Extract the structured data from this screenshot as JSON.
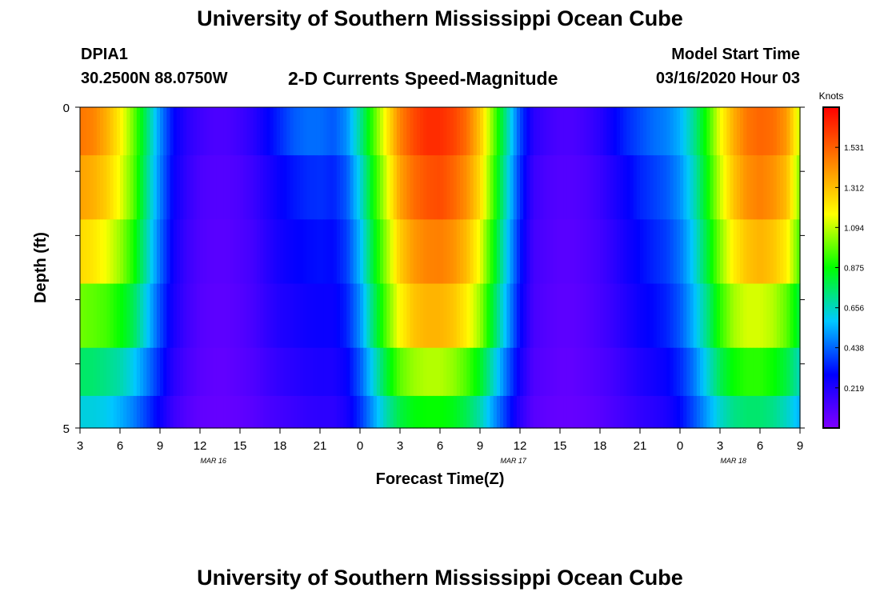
{
  "header": {
    "title": "University of Southern Mississippi Ocean Cube",
    "station": "DPIA1",
    "coords": "30.2500N 88.0750W",
    "subtitle": "2-D Currents Speed-Magnitude",
    "model_label": "Model Start Time",
    "model_time": "03/16/2020 Hour 03"
  },
  "footer": {
    "title": "University of Southern Mississippi Ocean Cube"
  },
  "colorbar": {
    "unit": "Knots",
    "tick_labels": [
      "0.219",
      "0.438",
      "0.656",
      "0.875",
      "1.094",
      "1.312",
      "1.531"
    ],
    "tick_values": [
      0.219,
      0.438,
      0.656,
      0.875,
      1.094,
      1.312,
      1.531
    ],
    "range": [
      0.0,
      1.75
    ],
    "colors": [
      "#7f00ff",
      "#0000ff",
      "#00c8ff",
      "#00ff00",
      "#ffff00",
      "#ff8000",
      "#ff0000"
    ]
  },
  "chart_data": {
    "type": "heatmap",
    "xlabel": "Forecast Time(Z)",
    "ylabel": "Depth (ft)",
    "ylim": [
      5,
      0
    ],
    "y_tick_labels": [
      "0",
      "5"
    ],
    "x_tick_labels": [
      "3",
      "6",
      "9",
      "12",
      "15",
      "18",
      "21",
      "0",
      "3",
      "6",
      "9",
      "12",
      "15",
      "18",
      "21",
      "0",
      "3",
      "6",
      "9"
    ],
    "x_tick_hours": [
      0,
      3,
      6,
      9,
      12,
      15,
      18,
      21,
      24,
      27,
      30,
      33,
      36,
      39,
      42,
      45,
      48,
      51,
      54
    ],
    "date_labels": [
      {
        "label": "MAR 16",
        "hour": 10
      },
      {
        "label": "MAR 17",
        "hour": 32.5
      },
      {
        "label": "MAR 18",
        "hour": 49
      }
    ],
    "x_hours": [
      0,
      1,
      2,
      3,
      4,
      5,
      6,
      7,
      8,
      9,
      10,
      11,
      12,
      13,
      14,
      15,
      16,
      17,
      18,
      19,
      20,
      21,
      22,
      23,
      24,
      25,
      26,
      27,
      28,
      29,
      30,
      31,
      32,
      33,
      34,
      35,
      36,
      37,
      38,
      39,
      40,
      41,
      42,
      43,
      44,
      45,
      46,
      47,
      48,
      49,
      50,
      51,
      52,
      53,
      54
    ],
    "depth_layers_ft": [
      0.25,
      1.25,
      2.25,
      3.25,
      4.25,
      4.75
    ],
    "values": [
      [
        1.48,
        1.45,
        1.35,
        1.2,
        1.0,
        0.75,
        0.5,
        0.3,
        0.2,
        0.15,
        0.12,
        0.12,
        0.15,
        0.2,
        0.28,
        0.35,
        0.42,
        0.45,
        0.45,
        0.42,
        0.5,
        0.7,
        0.95,
        1.2,
        1.45,
        1.58,
        1.65,
        1.65,
        1.6,
        1.5,
        1.3,
        1.0,
        0.7,
        0.4,
        0.2,
        0.15,
        0.12,
        0.12,
        0.15,
        0.2,
        0.28,
        0.35,
        0.4,
        0.45,
        0.48,
        0.55,
        0.7,
        0.9,
        1.15,
        1.35,
        1.48,
        1.52,
        1.5,
        1.4,
        1.1
      ],
      [
        1.38,
        1.35,
        1.28,
        1.15,
        0.98,
        0.72,
        0.48,
        0.28,
        0.18,
        0.12,
        0.1,
        0.1,
        0.12,
        0.16,
        0.22,
        0.28,
        0.32,
        0.35,
        0.36,
        0.34,
        0.42,
        0.62,
        0.88,
        1.12,
        1.38,
        1.5,
        1.56,
        1.58,
        1.52,
        1.42,
        1.25,
        0.95,
        0.65,
        0.36,
        0.16,
        0.12,
        0.1,
        0.1,
        0.12,
        0.16,
        0.22,
        0.28,
        0.34,
        0.38,
        0.42,
        0.5,
        0.65,
        0.86,
        1.1,
        1.3,
        1.42,
        1.46,
        1.42,
        1.32,
        1.02
      ],
      [
        1.25,
        1.22,
        1.15,
        1.05,
        0.9,
        0.68,
        0.45,
        0.26,
        0.16,
        0.11,
        0.09,
        0.09,
        0.11,
        0.14,
        0.2,
        0.25,
        0.28,
        0.3,
        0.31,
        0.3,
        0.38,
        0.56,
        0.82,
        1.05,
        1.28,
        1.4,
        1.45,
        1.46,
        1.42,
        1.32,
        1.15,
        0.88,
        0.6,
        0.33,
        0.14,
        0.11,
        0.09,
        0.09,
        0.11,
        0.14,
        0.19,
        0.25,
        0.3,
        0.34,
        0.38,
        0.46,
        0.6,
        0.8,
        1.02,
        1.2,
        1.3,
        1.34,
        1.3,
        1.2,
        0.95
      ],
      [
        1.0,
        0.98,
        0.95,
        0.88,
        0.78,
        0.6,
        0.4,
        0.24,
        0.15,
        0.1,
        0.08,
        0.08,
        0.1,
        0.13,
        0.18,
        0.22,
        0.24,
        0.26,
        0.27,
        0.27,
        0.34,
        0.5,
        0.75,
        0.98,
        1.18,
        1.3,
        1.34,
        1.34,
        1.3,
        1.2,
        1.05,
        0.8,
        0.55,
        0.3,
        0.13,
        0.1,
        0.08,
        0.08,
        0.1,
        0.13,
        0.17,
        0.22,
        0.27,
        0.3,
        0.34,
        0.42,
        0.55,
        0.72,
        0.92,
        1.06,
        1.12,
        1.12,
        1.08,
        0.98,
        0.8
      ],
      [
        0.76,
        0.75,
        0.72,
        0.68,
        0.6,
        0.48,
        0.34,
        0.2,
        0.13,
        0.09,
        0.07,
        0.07,
        0.09,
        0.11,
        0.15,
        0.18,
        0.2,
        0.22,
        0.23,
        0.23,
        0.28,
        0.42,
        0.62,
        0.82,
        0.98,
        1.05,
        1.08,
        1.08,
        1.04,
        0.96,
        0.84,
        0.65,
        0.45,
        0.25,
        0.11,
        0.09,
        0.07,
        0.07,
        0.09,
        0.11,
        0.14,
        0.18,
        0.22,
        0.25,
        0.28,
        0.35,
        0.46,
        0.62,
        0.78,
        0.88,
        0.92,
        0.92,
        0.88,
        0.8,
        0.66
      ],
      [
        0.62,
        0.62,
        0.6,
        0.55,
        0.48,
        0.38,
        0.27,
        0.16,
        0.1,
        0.07,
        0.06,
        0.06,
        0.07,
        0.09,
        0.12,
        0.14,
        0.16,
        0.18,
        0.19,
        0.19,
        0.24,
        0.36,
        0.52,
        0.68,
        0.8,
        0.86,
        0.88,
        0.88,
        0.85,
        0.78,
        0.68,
        0.52,
        0.36,
        0.2,
        0.09,
        0.07,
        0.06,
        0.06,
        0.07,
        0.09,
        0.12,
        0.15,
        0.18,
        0.2,
        0.23,
        0.3,
        0.4,
        0.52,
        0.64,
        0.72,
        0.75,
        0.75,
        0.72,
        0.65,
        0.55
      ]
    ]
  }
}
